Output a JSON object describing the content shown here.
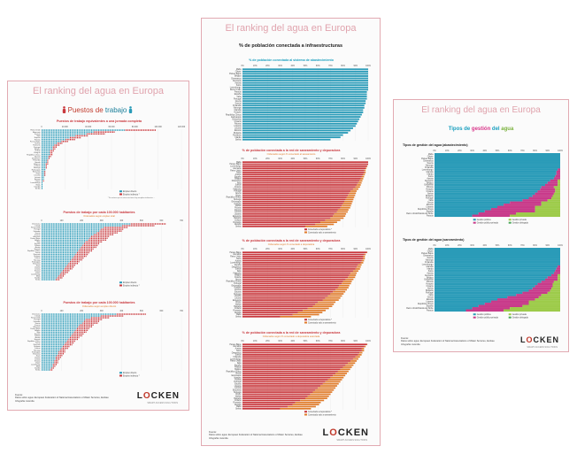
{
  "panels": {
    "left": {
      "title": "El ranking del agua en Europa",
      "subtitle_a": "Puestos de",
      "subtitle_b": "trabajo",
      "logo_a": "L",
      "logo_o": "O",
      "logo_b": "CKEN",
      "tagline": "SMART ACCESS SOLUTIONS",
      "source": [
        "Fuente:",
        "Datos sobre agua: European Federation of National Associations of Water Services, EurEau",
        "Infografía: Avenida"
      ]
    },
    "mid": {
      "title": "El ranking del agua en Europa",
      "subtitle": "% de población conectada a infraestructuras",
      "logo_a": "L",
      "logo_o": "O",
      "logo_b": "CKEN",
      "tagline": "SMART ACCESS SOLUTIONS",
      "source": [
        "Fuente:",
        "Datos sobre agua: European Federation of National Associations of Water Services, EurEau",
        "Infografía: Avenida"
      ]
    },
    "right": {
      "title": "El ranking del agua en Europa",
      "subtitle_a": "Tipos de ",
      "subtitle_b": "gestión",
      "subtitle_c": " del ",
      "subtitle_d": "agua",
      "logo_a": "L",
      "logo_o": "O",
      "logo_b": "CKEN",
      "tagline": "SMART ACCESS SOLUTIONS",
      "source": [
        "Fuente:",
        "Datos sobre agua: European Federation of National Associations of Water Services, EurEau",
        "Infografía: Avenida"
      ]
    }
  },
  "colors": {
    "teal": "#2a9bb8",
    "red": "#c9383d",
    "orange": "#e07b2a",
    "green": "#4aa85a",
    "pink": "#c83a8a",
    "lime": "#9dcb4a",
    "title": "#e0a3ad"
  },
  "chart_data": [
    {
      "panel": "left",
      "type": "bar",
      "title": "Puestos de trabajo equivalentes a una jornada completa",
      "xticks": [
        "0",
        "20.000",
        "40.000",
        "60.000",
        "80.000",
        "100.000",
        "120.000"
      ],
      "xlim": [
        0,
        120000
      ],
      "categories": [
        "Reino Unido",
        "Alemania",
        "Francia",
        "Italia",
        "España",
        "Polonia",
        "Países Bajos",
        "Suecia",
        "Rumanía",
        "Portugal",
        "Bélgica",
        "Grecia",
        "Hungría",
        "República Checa",
        "Austria",
        "Dinamarca",
        "Finlandia",
        "Irlanda",
        "Bulgaria",
        "Croacia",
        "Noruega",
        "Eslovaquia",
        "Eslovenia",
        "Suiza",
        "Lituania",
        "Letonia",
        "Estonia",
        "Chipre",
        "Luxemburgo",
        "Malta",
        "Islandia",
        "Serbia"
      ],
      "values": [
        98000,
        62000,
        54000,
        40000,
        33000,
        28000,
        22000,
        18000,
        15000,
        13000,
        12000,
        10000,
        9500,
        9000,
        8000,
        7000,
        6000,
        5500,
        5000,
        4500,
        4000,
        3500,
        3000,
        2800,
        2500,
        2000,
        1800,
        1500,
        1200,
        1000,
        800,
        600
      ],
      "legend": [
        "Empleo directo",
        "Empleo indirecto *"
      ],
      "note": "* Se estima que en otros sectores hay empleos indirectos ..."
    },
    {
      "panel": "left",
      "type": "bar",
      "title": "Puestos de trabajo por cada 100.000 habitantes",
      "subtitle": "Ordenados según empleo total",
      "xticks": [
        "0",
        "100",
        "200",
        "300",
        "400",
        "500",
        "600",
        "700"
      ],
      "xlim": [
        0,
        700
      ],
      "categories": [
        "Dinamarca",
        "Irlanda",
        "Reino Unido",
        "Portugal",
        "Finlandia",
        "Suecia",
        "Francia",
        "Alemania",
        "Países Bajos",
        "Bélgica",
        "Italia",
        "España",
        "Polonia",
        "Austria",
        "Hungría",
        "República Checa",
        "Grecia",
        "Rumanía",
        "Bulgaria",
        "Croacia",
        "Noruega",
        "Eslovaquia",
        "Eslovenia",
        "Suiza",
        "Lituania",
        "Letonia",
        "Estonia",
        "Chipre",
        "Luxemburgo",
        "Malta",
        "Islandia",
        "Serbia"
      ],
      "values": [
        620,
        560,
        430,
        410,
        400,
        380,
        360,
        340,
        330,
        320,
        300,
        290,
        280,
        270,
        260,
        250,
        240,
        230,
        220,
        210,
        200,
        190,
        180,
        170,
        160,
        150,
        140,
        130,
        120,
        110,
        100,
        90
      ],
      "legend": [
        "Empleo directo",
        "Empleo indirecto *"
      ]
    },
    {
      "panel": "left",
      "type": "bar",
      "title": "Puestos de trabajo por cada 100.000 habitantes",
      "subtitle": "Ordenados según empleo directo",
      "xticks": [
        "0",
        "100",
        "200",
        "300",
        "400",
        "500",
        "600",
        "700"
      ],
      "xlim": [
        0,
        700
      ],
      "categories": [
        "Dinamarca",
        "Irlanda",
        "Reino Unido",
        "Portugal",
        "Finlandia",
        "Suecia",
        "Francia",
        "Alemania",
        "Países Bajos",
        "Bélgica",
        "Italia",
        "España",
        "Polonia",
        "Austria",
        "Hungría",
        "República Checa",
        "Grecia",
        "Rumanía",
        "Bulgaria",
        "Croacia",
        "Noruega",
        "Eslovaquia",
        "Eslovenia",
        "Suiza",
        "Lituania",
        "Letonia",
        "Estonia",
        "Chipre",
        "Luxemburgo",
        "Malta",
        "Islandia",
        "Serbia"
      ],
      "values": [
        520,
        410,
        340,
        300,
        290,
        280,
        260,
        250,
        240,
        230,
        220,
        210,
        200,
        190,
        180,
        170,
        160,
        150,
        140,
        130,
        120,
        115,
        110,
        100,
        95,
        90,
        85,
        80,
        75,
        70,
        60,
        50
      ],
      "legend": [
        "Empleo directo",
        "Empleo indirecto *"
      ]
    },
    {
      "panel": "mid",
      "type": "bar",
      "title": "% de población conectada al sistema de abastecimiento",
      "xticks": [
        "0%",
        "10%",
        "20%",
        "30%",
        "40%",
        "50%",
        "60%",
        "70%",
        "80%",
        "90%",
        "100%"
      ],
      "xlim": [
        0,
        100
      ],
      "categories": [
        "Malta",
        "Chipre",
        "Países Bajos",
        "Bélgica",
        "Dinamarca",
        "Alemania",
        "Austria",
        "Suiza",
        "Luxemburgo",
        "Reino Unido",
        "Francia",
        "España",
        "Italia",
        "Portugal",
        "Grecia",
        "Suecia",
        "Finlandia",
        "Noruega",
        "Islandia",
        "Hungría",
        "República Checa",
        "Eslovaquia",
        "Eslovenia",
        "Croacia",
        "Polonia",
        "Lituania",
        "Letonia",
        "Estonia",
        "Bulgaria",
        "Rumanía",
        "Irlanda",
        "Serbia"
      ],
      "values": [
        100,
        100,
        100,
        100,
        100,
        100,
        100,
        100,
        100,
        100,
        99,
        99,
        99,
        99,
        98,
        98,
        97,
        97,
        96,
        96,
        95,
        94,
        93,
        92,
        91,
        90,
        88,
        86,
        84,
        80,
        78,
        70
      ]
    },
    {
      "panel": "mid",
      "type": "bar",
      "title": "% de población conectada a la red de saneamiento y depuradora",
      "subtitle": "Ordenados según % conectado al saneamiento",
      "xticks": [
        "0%",
        "10%",
        "20%",
        "30%",
        "40%",
        "50%",
        "60%",
        "70%",
        "80%",
        "90%",
        "100%"
      ],
      "xlim": [
        0,
        100
      ],
      "categories": [
        "Malta",
        "Países Bajos",
        "Luxemburgo",
        "Alemania",
        "Reino Unido",
        "Suiza",
        "Austria",
        "España",
        "Bélgica",
        "Dinamarca",
        "Italia",
        "Suecia",
        "Francia",
        "Finlandia",
        "Portugal",
        "Grecia",
        "Chipre",
        "República Checa",
        "Noruega",
        "Eslovaquia",
        "Hungría",
        "Irlanda",
        "Polonia",
        "Estonia",
        "Letonia",
        "Lituania",
        "Eslovenia",
        "Bulgaria",
        "Croacia",
        "Rumanía",
        "Islandia",
        "Serbia"
      ],
      "values": [
        100,
        100,
        99,
        98,
        97,
        97,
        96,
        95,
        94,
        93,
        92,
        91,
        90,
        88,
        86,
        85,
        84,
        83,
        82,
        81,
        80,
        79,
        78,
        76,
        75,
        73,
        72,
        70,
        66,
        62,
        58,
        50
      ],
      "legend": [
        "Conectado a depuradora *",
        "Conectado solo a saneamiento"
      ]
    },
    {
      "panel": "mid",
      "type": "bar",
      "title": "% de población conectada a la red de saneamiento y depuradora",
      "subtitle": "Ordenados según % conectado a depuradora",
      "xticks": [
        "0%",
        "10%",
        "20%",
        "30%",
        "40%",
        "50%",
        "60%",
        "70%",
        "80%",
        "90%",
        "100%"
      ],
      "xlim": [
        0,
        100
      ],
      "categories": [
        "Países Bajos",
        "Alemania",
        "Reino Unido",
        "Suiza",
        "Austria",
        "Luxemburgo",
        "España",
        "Dinamarca",
        "Suecia",
        "Italia",
        "Finlandia",
        "Bélgica",
        "Francia",
        "Grecia",
        "República Checa",
        "Portugal",
        "Eslovaquia",
        "Hungría",
        "Polonia",
        "Estonia",
        "Noruega",
        "Lituania",
        "Letonia",
        "Eslovenia",
        "Chipre",
        "Irlanda",
        "Bulgaria",
        "Croacia",
        "Rumanía",
        "Islandia",
        "Malta",
        "Serbia"
      ],
      "values": [
        99,
        97,
        96,
        96,
        95,
        94,
        92,
        91,
        90,
        88,
        86,
        85,
        84,
        82,
        80,
        79,
        77,
        76,
        74,
        72,
        70,
        68,
        66,
        64,
        60,
        58,
        56,
        52,
        48,
        44,
        40,
        30
      ],
      "legend": [
        "Conectado a depuradora *",
        "Conectado solo a saneamiento"
      ]
    },
    {
      "panel": "mid",
      "type": "bar",
      "title": "% de población conectada a la red de saneamiento y depuradora",
      "subtitle": "Ordenados según % conectado a depuradora avanzada",
      "xticks": [
        "0%",
        "10%",
        "20%",
        "30%",
        "40%",
        "50%",
        "60%",
        "70%",
        "80%",
        "90%",
        "100%"
      ],
      "xlim": [
        0,
        100
      ],
      "categories": [
        "Países Bajos",
        "Alemania",
        "Austria",
        "Suiza",
        "Dinamarca",
        "Suecia",
        "Finlandia",
        "Luxemburgo",
        "Reino Unido",
        "Italia",
        "España",
        "Francia",
        "Bélgica",
        "República Checa",
        "Grecia",
        "Eslovaquia",
        "Hungría",
        "Polonia",
        "Portugal",
        "Estonia",
        "Lituania",
        "Letonia",
        "Eslovenia",
        "Noruega",
        "Chipre",
        "Irlanda",
        "Bulgaria",
        "Croacia",
        "Rumanía",
        "Islandia",
        "Malta",
        "Serbia"
      ],
      "values": [
        99,
        97,
        95,
        95,
        93,
        92,
        90,
        88,
        86,
        84,
        82,
        80,
        78,
        76,
        74,
        72,
        70,
        68,
        66,
        64,
        62,
        60,
        58,
        56,
        54,
        52,
        50,
        46,
        42,
        40,
        36,
        30
      ],
      "legend": [
        "Conectado a depuradora *",
        "Conectado solo a saneamiento"
      ]
    },
    {
      "panel": "right",
      "type": "area",
      "title": "Tipos de gestión del agua (abastecimiento)",
      "xticks": [
        "0%",
        "10%",
        "20%",
        "30%",
        "40%",
        "50%",
        "60%",
        "70%",
        "80%",
        "90%",
        "100%"
      ],
      "xlim": [
        0,
        100
      ],
      "categories": [
        "Malta",
        "Chipre",
        "Países Bajos",
        "Dinamarca",
        "Suecia",
        "Noruega",
        "Finlandia",
        "Luxemburgo",
        "Islandia",
        "Irlanda",
        "Suiza",
        "Austria",
        "Alemania",
        "Bélgica",
        "Eslovenia",
        "Polonia",
        "Hungría",
        "Croacia",
        "Serbia",
        "Bulgaria",
        "Portugal",
        "Italia",
        "Grecia",
        "Estonia",
        "Lituania",
        "República Checa",
        "España",
        "Reino Unido/Irlanda del Norte",
        "Francia"
      ],
      "series": [
        {
          "name": "Gestión pública",
          "values": [
            100,
            100,
            100,
            100,
            100,
            100,
            100,
            98,
            97,
            97,
            96,
            95,
            92,
            90,
            88,
            85,
            84,
            82,
            80,
            78,
            75,
            70,
            60,
            55,
            50,
            45,
            40,
            35,
            30
          ]
        },
        {
          "name": "Gestión público-privada",
          "values": [
            0,
            0,
            0,
            0,
            0,
            0,
            0,
            2,
            3,
            3,
            4,
            5,
            6,
            8,
            10,
            10,
            12,
            14,
            15,
            16,
            18,
            20,
            25,
            30,
            30,
            35,
            40,
            30,
            30
          ]
        },
        {
          "name": "Gestión privada",
          "values": [
            0,
            0,
            0,
            0,
            0,
            0,
            0,
            0,
            0,
            0,
            0,
            0,
            2,
            2,
            2,
            5,
            4,
            4,
            5,
            6,
            7,
            10,
            15,
            15,
            20,
            20,
            20,
            35,
            40
          ]
        }
      ],
      "legend": [
        "Gestión pública",
        "Gestión público-privada",
        "Gestión privada",
        "Gestión delegada"
      ]
    },
    {
      "panel": "right",
      "type": "area",
      "title": "Tipos de gestión del agua (saneamiento)",
      "xticks": [
        "0%",
        "10%",
        "20%",
        "30%",
        "40%",
        "50%",
        "60%",
        "70%",
        "80%",
        "90%",
        "100%"
      ],
      "xlim": [
        0,
        100
      ],
      "categories": [
        "Malta",
        "Chipre",
        "Países Bajos",
        "Dinamarca",
        "Suecia",
        "Noruega",
        "Finlandia",
        "Luxemburgo",
        "Islandia",
        "Irlanda",
        "Suiza",
        "Austria",
        "Alemania",
        "Bélgica",
        "Eslovenia",
        "Polonia",
        "Hungría",
        "Croacia",
        "Serbia",
        "Bulgaria",
        "Portugal",
        "Italia",
        "Grecia",
        "Estonia",
        "Lituania",
        "República Checa",
        "España",
        "Reino Unido/Irlanda del Norte",
        "Francia"
      ],
      "series": [
        {
          "name": "Gestión pública",
          "values": [
            100,
            100,
            100,
            100,
            100,
            100,
            100,
            100,
            98,
            97,
            96,
            95,
            93,
            90,
            88,
            85,
            82,
            80,
            78,
            75,
            70,
            65,
            58,
            50,
            45,
            40,
            35,
            30,
            25
          ]
        },
        {
          "name": "Gestión público-privada",
          "values": [
            0,
            0,
            0,
            0,
            0,
            0,
            0,
            0,
            2,
            3,
            4,
            5,
            5,
            8,
            10,
            10,
            12,
            14,
            15,
            17,
            20,
            20,
            25,
            30,
            30,
            35,
            35,
            30,
            30
          ]
        },
        {
          "name": "Gestión privada",
          "values": [
            0,
            0,
            0,
            0,
            0,
            0,
            0,
            0,
            0,
            0,
            0,
            0,
            2,
            2,
            2,
            5,
            6,
            6,
            7,
            8,
            10,
            15,
            17,
            20,
            25,
            25,
            30,
            40,
            45
          ]
        }
      ],
      "legend": [
        "Gestión pública",
        "Gestión público-privada",
        "Gestión privada",
        "Gestión delegada"
      ]
    }
  ]
}
